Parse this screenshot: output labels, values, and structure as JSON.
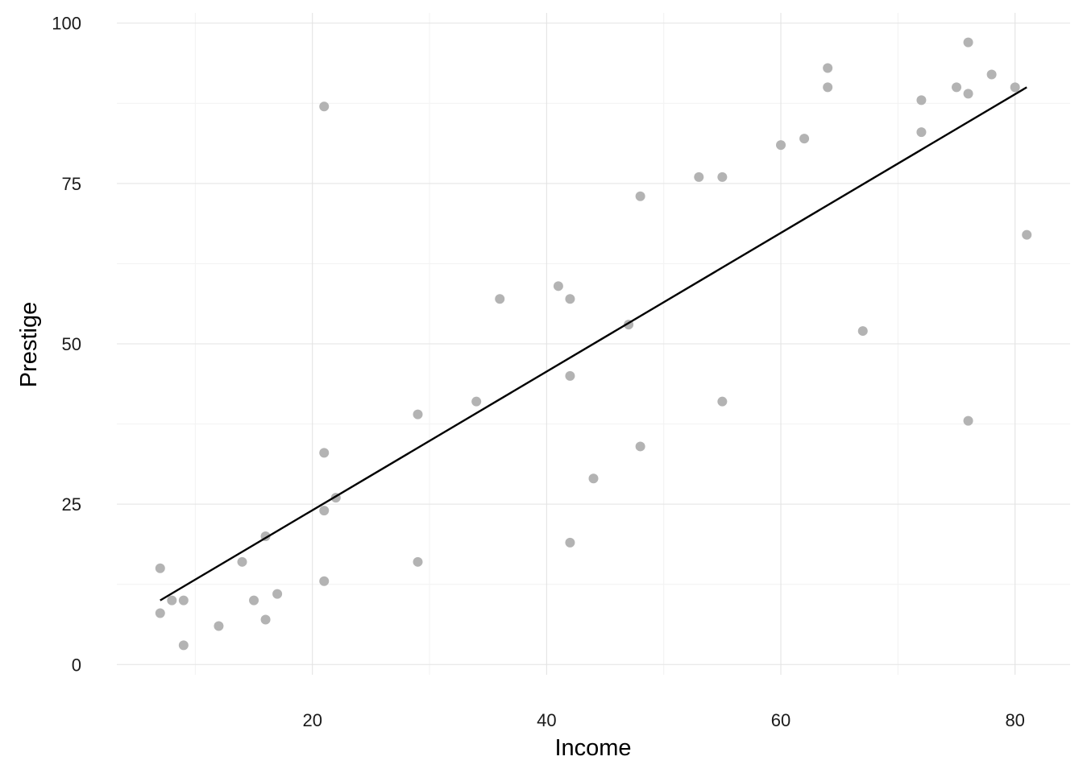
{
  "chart_data": {
    "type": "scatter",
    "title": "",
    "xlabel": "Income",
    "ylabel": "Prestige",
    "xlim": [
      3.3,
      84.7
    ],
    "ylim": [
      -1.6,
      101.6
    ],
    "x_ticks": [
      20,
      40,
      60,
      80
    ],
    "y_ticks": [
      0,
      25,
      50,
      75,
      100
    ],
    "x_minor": [
      10,
      30,
      50,
      70
    ],
    "y_minor": [
      12.5,
      37.5,
      62.5,
      87.5
    ],
    "grid": true,
    "legend": "none",
    "colors": {
      "points": "#b3b3b3",
      "line": "#000000",
      "grid": "#e3e3e3"
    },
    "series": [
      {
        "type": "scatter",
        "points": [
          [
            7,
            15
          ],
          [
            7,
            8
          ],
          [
            8,
            10
          ],
          [
            9,
            10
          ],
          [
            9,
            3
          ],
          [
            12,
            6
          ],
          [
            14,
            16
          ],
          [
            15,
            10
          ],
          [
            16,
            20
          ],
          [
            16,
            7
          ],
          [
            17,
            11
          ],
          [
            21,
            87
          ],
          [
            21,
            33
          ],
          [
            21,
            24
          ],
          [
            21,
            13
          ],
          [
            22,
            26
          ],
          [
            29,
            39
          ],
          [
            29,
            16
          ],
          [
            34,
            41
          ],
          [
            36,
            57
          ],
          [
            41,
            59
          ],
          [
            42,
            57
          ],
          [
            42,
            45
          ],
          [
            42,
            19
          ],
          [
            44,
            29
          ],
          [
            47,
            53
          ],
          [
            48,
            73
          ],
          [
            48,
            34
          ],
          [
            53,
            76
          ],
          [
            55,
            76
          ],
          [
            55,
            41
          ],
          [
            60,
            81
          ],
          [
            62,
            82
          ],
          [
            64,
            93
          ],
          [
            64,
            90
          ],
          [
            67,
            52
          ],
          [
            72,
            88
          ],
          [
            72,
            83
          ],
          [
            75,
            90
          ],
          [
            76,
            97
          ],
          [
            76,
            89
          ],
          [
            76,
            38
          ],
          [
            78,
            92
          ],
          [
            80,
            90
          ],
          [
            81,
            67
          ]
        ]
      },
      {
        "type": "line",
        "points": [
          [
            7,
            10
          ],
          [
            81,
            90
          ]
        ]
      }
    ]
  }
}
